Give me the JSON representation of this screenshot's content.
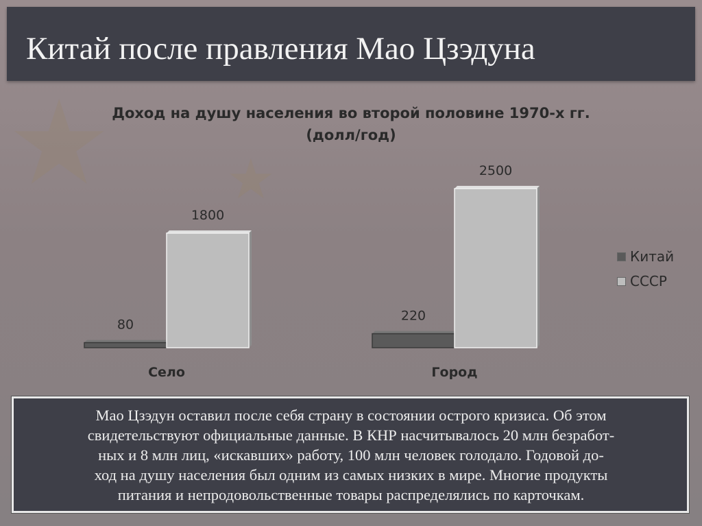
{
  "slide": {
    "title": "Китай после правления Мао Цзэдуна",
    "paragraph_lines": [
      "Мао Цзэдун оставил после себя страну в состоянии острого кризиса. Об этом",
      "свидетельствуют официальные данные. В КНР насчитывалось 20 млн безработ-",
      "ных и 8 млн лиц, «искавших» работу, 100 млн человек голодало. Годовой до-",
      "ход на душу населения был одним из самых низких в мире. Многие продукты",
      "питания и непродовольственные товары распределялись по карточкам."
    ]
  },
  "colors": {
    "title_bar": "#3e3f48",
    "china_bar": "#5a5a5a",
    "ussr_bar": "#bdbdbd"
  },
  "chart_data": {
    "type": "bar",
    "title": "Доход на душу населения во второй половине 1970-х гг.",
    "subtitle": "(долл/год)",
    "categories": [
      "Село",
      "Город"
    ],
    "series": [
      {
        "name": "Китай",
        "values": [
          80,
          220
        ],
        "color": "#5a5a5a"
      },
      {
        "name": "СССР",
        "values": [
          1800,
          2500
        ],
        "color": "#bdbdbd"
      }
    ],
    "xlabel": "",
    "ylabel": "",
    "ylim": [
      0,
      2500
    ],
    "grid": false,
    "legend": "right",
    "data_labels": true
  }
}
